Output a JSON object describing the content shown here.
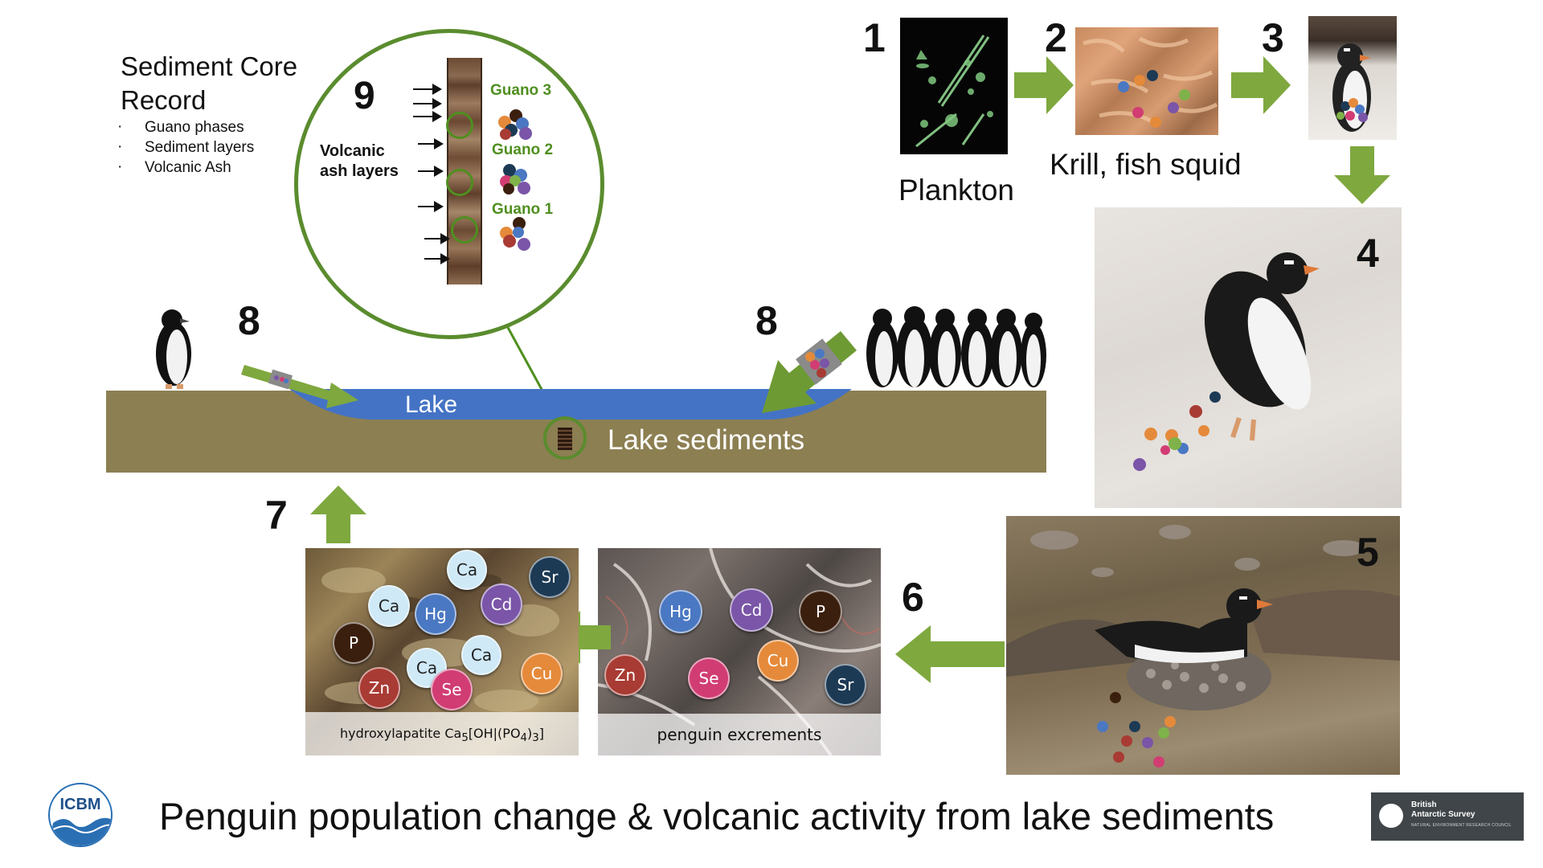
{
  "title": "Penguin population change & volcanic activity from lake sediments",
  "logos": {
    "icbm": "ICBM",
    "bas_line1": "British",
    "bas_line2": "Antarctic Survey",
    "bas_line3": "NATURAL ENVIRONMENT RESEARCH COUNCIL"
  },
  "core_record": {
    "heading_line1": "Sediment Core",
    "heading_line2": "Record",
    "items": [
      "Guano phases",
      "Sediment layers",
      "Volcanic Ash"
    ]
  },
  "zoom": {
    "number": "9",
    "ash_label_line1": "Volcanic",
    "ash_label_line2": "ash layers",
    "guano": [
      "Guano 3",
      "Guano 2",
      "Guano 1"
    ]
  },
  "steps": {
    "s1": "1",
    "s2": "2",
    "s3": "3",
    "s4": "4",
    "s5": "5",
    "s6": "6",
    "s7": "7",
    "s8a": "8",
    "s8b": "8"
  },
  "food_chain": {
    "plankton": "Plankton",
    "krill": "Krill, fish squid"
  },
  "lake": {
    "lake_label": "Lake",
    "sediment_label": "Lake sediments"
  },
  "panels": {
    "excrement_caption": "penguin excrements",
    "hydroxylapatite_prefix": "hydroxylapatite Ca",
    "hydroxylapatite_sub1": "5",
    "hydroxylapatite_mid": "[OH|(PO",
    "hydroxylapatite_sub2": "4",
    "hydroxylapatite_close": ")",
    "hydroxylapatite_sub3": "3",
    "hydroxylapatite_end": "]"
  },
  "elements_excrement": [
    "Hg",
    "Cd",
    "P",
    "Cu",
    "Zn",
    "Se",
    "Sr"
  ],
  "elements_apatite": [
    "Ca",
    "Sr",
    "Ca",
    "Hg",
    "Cd",
    "P",
    "Ca",
    "Ca",
    "Cu",
    "Zn",
    "Se"
  ],
  "colors": {
    "arrow_green": "#7fa83f",
    "lake_blue": "#4473c5",
    "ground": "#8c7f52",
    "guano_green": "#4f8f1f",
    "Ca": "#cfe9f7",
    "Sr": "#1d3a55",
    "Hg": "#4a78c2",
    "Cd": "#7a55a8",
    "P": "#3b1f0e",
    "Cu": "#e58a3a",
    "Zn": "#a83b33",
    "Se": "#d13d73"
  }
}
